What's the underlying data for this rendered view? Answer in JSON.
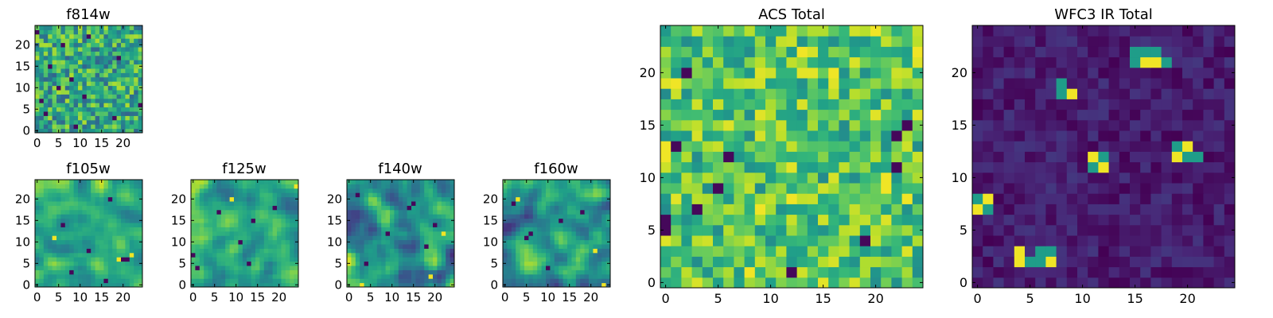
{
  "colormap": "viridis",
  "colors": {
    "frame": "#000000",
    "text": "#000000",
    "background": "#ffffff"
  },
  "chart_data": [
    {
      "id": "f814w",
      "type": "heatmap",
      "title": "f814w",
      "xlim": [
        -0.5,
        24.5
      ],
      "ylim": [
        -0.5,
        24.5
      ],
      "xticks": [
        0,
        5,
        10,
        15,
        20
      ],
      "xtick_labels": [
        "0",
        "5",
        "10",
        "15",
        "20"
      ],
      "yticks": [
        0,
        5,
        10,
        15,
        20
      ],
      "ytick_labels": [
        "0",
        "5",
        "10",
        "15",
        "20"
      ],
      "grid": [
        25,
        25
      ],
      "pattern": "noise",
      "seed": 11,
      "base": 0.6,
      "amp": 0.28,
      "dark_cells": [
        [
          2,
          4
        ],
        [
          1,
          7
        ],
        [
          11,
          8
        ],
        [
          8,
          12
        ],
        [
          3,
          15
        ],
        [
          6,
          20
        ],
        [
          12,
          22
        ],
        [
          9,
          1
        ],
        [
          18,
          3
        ],
        [
          19,
          17
        ],
        [
          24,
          6
        ],
        [
          5,
          10
        ],
        [
          0,
          23
        ]
      ],
      "bright_cells": []
    },
    {
      "id": "f105w",
      "type": "heatmap",
      "title": "f105w",
      "xlim": [
        -0.5,
        24.5
      ],
      "ylim": [
        -0.5,
        24.5
      ],
      "xticks": [
        0,
        5,
        10,
        15,
        20
      ],
      "xtick_labels": [
        "0",
        "5",
        "10",
        "15",
        "20"
      ],
      "yticks": [
        0,
        5,
        10,
        15,
        20
      ],
      "ytick_labels": [
        "0",
        "5",
        "10",
        "15",
        "20"
      ],
      "grid": [
        25,
        25
      ],
      "pattern": "smooth",
      "seed": 23,
      "base": 0.62,
      "amp": 0.3,
      "dark_cells": [
        [
          20,
          6
        ],
        [
          21,
          6
        ],
        [
          8,
          3
        ],
        [
          12,
          8
        ],
        [
          17,
          20
        ],
        [
          6,
          14
        ],
        [
          16,
          1
        ]
      ],
      "bright_cells": [
        [
          19,
          6
        ],
        [
          22,
          7
        ],
        [
          4,
          11
        ]
      ]
    },
    {
      "id": "f125w",
      "type": "heatmap",
      "title": "f125w",
      "xlim": [
        -0.5,
        24.5
      ],
      "ylim": [
        -0.5,
        24.5
      ],
      "xticks": [
        0,
        5,
        10,
        15,
        20
      ],
      "xtick_labels": [
        "0",
        "5",
        "10",
        "15",
        "20"
      ],
      "yticks": [
        0,
        5,
        10,
        15,
        20
      ],
      "ytick_labels": [
        "0",
        "5",
        "10",
        "15",
        "20"
      ],
      "grid": [
        25,
        25
      ],
      "pattern": "smooth",
      "seed": 37,
      "base": 0.6,
      "amp": 0.32,
      "dark_cells": [
        [
          0,
          7
        ],
        [
          1,
          4
        ],
        [
          11,
          10
        ],
        [
          14,
          15
        ],
        [
          19,
          18
        ],
        [
          6,
          17
        ],
        [
          13,
          5
        ]
      ],
      "bright_cells": [
        [
          9,
          20
        ],
        [
          24,
          23
        ]
      ]
    },
    {
      "id": "f140w",
      "type": "heatmap",
      "title": "f140w",
      "xlim": [
        -0.5,
        24.5
      ],
      "ylim": [
        -0.5,
        24.5
      ],
      "xticks": [
        0,
        5,
        10,
        15,
        20
      ],
      "xtick_labels": [
        "0",
        "5",
        "10",
        "15",
        "20"
      ],
      "yticks": [
        0,
        5,
        10,
        15,
        20
      ],
      "ytick_labels": [
        "0",
        "5",
        "10",
        "15",
        "20"
      ],
      "grid": [
        25,
        25
      ],
      "pattern": "smooth",
      "seed": 51,
      "base": 0.52,
      "amp": 0.4,
      "dark_cells": [
        [
          2,
          21
        ],
        [
          15,
          19
        ],
        [
          18,
          9
        ],
        [
          14,
          18
        ],
        [
          9,
          12
        ],
        [
          20,
          14
        ],
        [
          4,
          5
        ]
      ],
      "bright_cells": [
        [
          3,
          0
        ],
        [
          19,
          2
        ],
        [
          22,
          12
        ]
      ]
    },
    {
      "id": "f160w",
      "type": "heatmap",
      "title": "f160w",
      "xlim": [
        -0.5,
        24.5
      ],
      "ylim": [
        -0.5,
        24.5
      ],
      "xticks": [
        0,
        5,
        10,
        15,
        20
      ],
      "xtick_labels": [
        "0",
        "5",
        "10",
        "15",
        "20"
      ],
      "yticks": [
        0,
        5,
        10,
        15,
        20
      ],
      "ytick_labels": [
        "0",
        "5",
        "10",
        "15",
        "20"
      ],
      "grid": [
        25,
        25
      ],
      "pattern": "smooth",
      "seed": 67,
      "base": 0.55,
      "amp": 0.38,
      "dark_cells": [
        [
          5,
          11
        ],
        [
          6,
          12
        ],
        [
          13,
          15
        ],
        [
          10,
          4
        ],
        [
          18,
          17
        ],
        [
          2,
          19
        ]
      ],
      "bright_cells": [
        [
          21,
          8
        ],
        [
          3,
          20
        ],
        [
          23,
          0
        ]
      ]
    },
    {
      "id": "acs-total",
      "type": "heatmap",
      "title": "ACS Total",
      "xlim": [
        -0.5,
        24.5
      ],
      "ylim": [
        -0.5,
        24.5
      ],
      "xticks": [
        0,
        5,
        10,
        15,
        20
      ],
      "xtick_labels": [
        "0",
        "5",
        "10",
        "15",
        "20"
      ],
      "yticks": [
        0,
        5,
        10,
        15,
        20
      ],
      "ytick_labels": [
        "0",
        "5",
        "10",
        "15",
        "20"
      ],
      "grid": [
        25,
        25
      ],
      "pattern": "noise",
      "seed": 89,
      "base": 0.72,
      "amp": 0.24,
      "dark_cells": [
        [
          2,
          20
        ],
        [
          1,
          13
        ],
        [
          5,
          9
        ],
        [
          3,
          7
        ],
        [
          0,
          6
        ],
        [
          0,
          5
        ],
        [
          12,
          1
        ],
        [
          19,
          4
        ],
        [
          22,
          11
        ],
        [
          22,
          14
        ],
        [
          23,
          15
        ],
        [
          6,
          12
        ]
      ],
      "bright_cells": [
        [
          1,
          19
        ],
        [
          0,
          13
        ],
        [
          0,
          12
        ],
        [
          9,
          7
        ],
        [
          12,
          8
        ],
        [
          21,
          10
        ],
        [
          21,
          9
        ],
        [
          8,
          1
        ],
        [
          23,
          8
        ],
        [
          13,
          22
        ],
        [
          24,
          22
        ],
        [
          16,
          20
        ],
        [
          20,
          24
        ]
      ]
    },
    {
      "id": "wfc3-ir-total",
      "type": "heatmap",
      "title": "WFC3 IR Total",
      "xlim": [
        -0.5,
        24.5
      ],
      "ylim": [
        -0.5,
        24.5
      ],
      "xticks": [
        0,
        5,
        10,
        15,
        20
      ],
      "xtick_labels": [
        "0",
        "5",
        "10",
        "15",
        "20"
      ],
      "yticks": [
        0,
        5,
        10,
        15,
        20
      ],
      "ytick_labels": [
        "0",
        "5",
        "10",
        "15",
        "20"
      ],
      "grid": [
        25,
        25
      ],
      "pattern": "noise",
      "seed": 101,
      "base": 0.08,
      "amp": 0.08,
      "dark_cells": [],
      "bright_cells": [
        [
          16,
          21
        ],
        [
          17,
          21
        ],
        [
          9,
          18
        ],
        [
          11,
          12
        ],
        [
          12,
          11
        ],
        [
          19,
          12
        ],
        [
          20,
          13
        ],
        [
          1,
          8
        ],
        [
          0,
          7
        ],
        [
          4,
          3
        ],
        [
          4,
          2
        ],
        [
          7,
          2
        ]
      ],
      "medium_cells": [
        [
          16,
          22
        ],
        [
          17,
          22
        ],
        [
          15,
          22
        ],
        [
          18,
          21
        ],
        [
          15,
          21
        ],
        [
          8,
          18
        ],
        [
          8,
          19
        ],
        [
          11,
          11
        ],
        [
          12,
          12
        ],
        [
          19,
          13
        ],
        [
          20,
          12
        ],
        [
          21,
          12
        ],
        [
          0,
          8
        ],
        [
          1,
          7
        ],
        [
          5,
          2
        ],
        [
          6,
          2
        ],
        [
          6,
          3
        ],
        [
          7,
          3
        ]
      ]
    }
  ]
}
